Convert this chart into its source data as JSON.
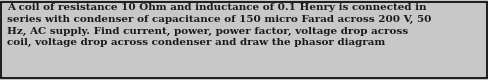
{
  "text": "A coil of resistance 10 Ohm and inductance of 0.1 Henry is connected in\nseries with condenser of capacitance of 150 micro Farad across 200 V, 50\nHz, AC supply. Find current, power, power factor, voltage drop across\ncoil, voltage drop across condenser and draw the phasor diagram",
  "font_size": 7.5,
  "font_weight": "bold",
  "font_family": "DejaVu Serif",
  "text_color": "#1a1a1a",
  "background_color": "#c8c8c8",
  "border_color": "#000000",
  "border_linewidth": 1.2,
  "fig_width": 4.88,
  "fig_height": 0.8
}
